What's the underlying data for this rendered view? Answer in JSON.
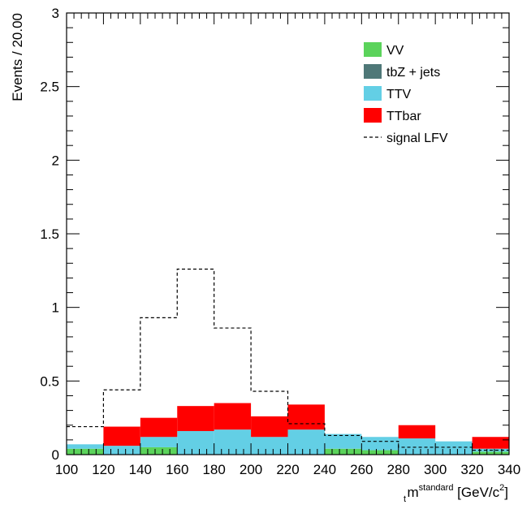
{
  "chart_data": {
    "type": "bar",
    "stacked": true,
    "ylabel": "Events / 20.00",
    "xlabel": {
      "main": "m",
      "sub": "t",
      "sup": "standard",
      "units_prefix": " [GeV/c",
      "units_sup": "2",
      "units_suffix": "]"
    },
    "xlim": [
      100,
      340
    ],
    "ylim": [
      0,
      3
    ],
    "bin_width": 20,
    "bin_edges": [
      100,
      120,
      140,
      160,
      180,
      200,
      220,
      240,
      260,
      280,
      300,
      320,
      340
    ],
    "x_ticks": [
      "100",
      "120",
      "140",
      "160",
      "180",
      "200",
      "220",
      "240",
      "260",
      "280",
      "300",
      "320",
      "340"
    ],
    "y_ticks": [
      {
        "value": 0,
        "label": "0"
      },
      {
        "value": 0.5,
        "label": "0.5"
      },
      {
        "value": 1,
        "label": "1"
      },
      {
        "value": 1.5,
        "label": "1.5"
      },
      {
        "value": 2,
        "label": "2"
      },
      {
        "value": 2.5,
        "label": "2.5"
      },
      {
        "value": 3,
        "label": "3"
      }
    ],
    "series": [
      {
        "name": "VV",
        "color": "#5bd35b",
        "values": [
          0.04,
          0.0,
          0.05,
          0.0,
          0.0,
          0.0,
          0.0,
          0.04,
          0.03,
          0.0,
          0.0,
          0.02
        ]
      },
      {
        "name": "tbZ + jets",
        "color": "#4f7878",
        "values": [
          0.0,
          0.0,
          0.0,
          0.0,
          0.0,
          0.0,
          0.0,
          0.0,
          0.0,
          0.0,
          0.0,
          0.0
        ]
      },
      {
        "name": "TTV",
        "color": "#63cfe5",
        "values": [
          0.03,
          0.06,
          0.07,
          0.16,
          0.17,
          0.12,
          0.17,
          0.1,
          0.09,
          0.11,
          0.09,
          0.02
        ]
      },
      {
        "name": "TTbar",
        "color": "#ff0000",
        "values": [
          0.0,
          0.13,
          0.13,
          0.17,
          0.18,
          0.14,
          0.17,
          0.0,
          0.0,
          0.09,
          0.0,
          0.08
        ]
      }
    ],
    "signal": {
      "name": "signal LFV",
      "style": "dashed",
      "values": [
        0.19,
        0.44,
        0.93,
        1.26,
        0.86,
        0.43,
        0.21,
        0.13,
        0.09,
        0.05,
        0.05,
        0.03
      ]
    },
    "legend": {
      "position": "top-right",
      "order": [
        "VV",
        "tbZ + jets",
        "TTV",
        "TTbar",
        "signal LFV"
      ]
    },
    "grid": false
  }
}
